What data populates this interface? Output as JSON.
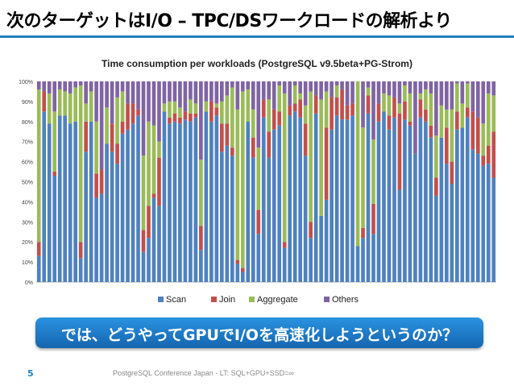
{
  "slide": {
    "title": "次のターゲットはI/O – TPC/DSワークロードの解析より",
    "callout": "では、どうやってGPUでI/Oを高速化しようというのか？",
    "page_number": "5",
    "footer": "PostgreSQL Conference Japan - LT: SQL+GPU+SSD=∞"
  },
  "colors": {
    "accent": "#1f7fbf",
    "Scan": "#4f81bd",
    "Join": "#c0504d",
    "Aggregate": "#9bbb59",
    "Others": "#8064a2"
  },
  "chart_data": {
    "type": "bar",
    "stacked": true,
    "title": "Time consumption per workloads (PostgreSQL v9.5beta+PG-Strom)",
    "ylim": [
      0,
      100
    ],
    "y_ticks": [
      "0%",
      "10%",
      "20%",
      "30%",
      "40%",
      "50%",
      "60%",
      "70%",
      "80%",
      "90%",
      "100%"
    ],
    "legend": [
      "Scan",
      "Join",
      "Aggregate",
      "Others"
    ],
    "legend_position": "bottom",
    "grid": false,
    "series": [
      {
        "name": "Scan",
        "values": [
          13,
          85,
          79,
          53,
          83,
          83,
          79,
          80,
          12,
          65,
          80,
          42,
          44,
          69,
          65,
          59,
          74,
          76,
          79,
          83,
          15,
          22,
          42,
          38,
          85,
          79,
          80,
          79,
          81,
          80,
          82,
          16,
          85,
          80,
          83,
          65,
          68,
          63,
          9,
          5,
          80,
          62,
          24,
          82,
          62,
          76,
          78,
          17,
          83,
          85,
          82,
          63,
          22,
          84,
          33,
          41,
          76,
          83,
          81,
          81,
          83,
          18,
          22,
          84,
          24,
          80,
          85,
          76,
          82,
          46,
          81,
          78,
          64,
          82,
          80,
          72,
          43,
          72,
          59,
          49,
          76,
          77,
          82,
          66,
          64,
          58,
          59,
          52
        ]
      },
      {
        "name": "Join",
        "values": [
          7,
          10,
          0,
          2,
          0,
          0,
          0,
          0,
          8,
          15,
          0,
          12,
          12,
          0,
          14,
          10,
          6,
          13,
          10,
          3,
          11,
          16,
          2,
          24,
          0,
          3,
          4,
          3,
          4,
          4,
          2,
          12,
          0,
          10,
          4,
          14,
          11,
          4,
          2,
          2,
          0,
          10,
          12,
          9,
          13,
          10,
          7,
          3,
          5,
          4,
          9,
          16,
          8,
          9,
          0,
          36,
          16,
          9,
          15,
          7,
          6,
          0,
          5,
          9,
          15,
          9,
          0,
          7,
          10,
          38,
          9,
          2,
          0,
          9,
          6,
          6,
          9,
          0,
          18,
          11,
          9,
          0,
          5,
          19,
          18,
          5,
          9,
          23
        ]
      },
      {
        "name": "Aggregate",
        "values": [
          76,
          0,
          15,
          30,
          13,
          12,
          15,
          17,
          78,
          9,
          15,
          26,
          0,
          18,
          0,
          23,
          15,
          0,
          0,
          0,
          37,
          42,
          34,
          8,
          4,
          8,
          6,
          5,
          0,
          7,
          5,
          33,
          5,
          0,
          2,
          11,
          14,
          30,
          75,
          88,
          16,
          14,
          31,
          0,
          16,
          0,
          13,
          74,
          0,
          9,
          3,
          9,
          65,
          0,
          58,
          18,
          0,
          6,
          0,
          0,
          0,
          82,
          50,
          4,
          32,
          0,
          9,
          10,
          0,
          5,
          8,
          14,
          0,
          3,
          10,
          16,
          21,
          16,
          9,
          26,
          14,
          12,
          12,
          0,
          0,
          16,
          26,
          18
        ]
      },
      {
        "name": "Others",
        "values": [
          4,
          5,
          6,
          15,
          4,
          5,
          6,
          3,
          2,
          11,
          5,
          20,
          44,
          13,
          21,
          8,
          5,
          11,
          11,
          14,
          37,
          20,
          22,
          30,
          11,
          10,
          10,
          13,
          15,
          9,
          11,
          39,
          10,
          10,
          11,
          10,
          7,
          3,
          14,
          5,
          4,
          14,
          33,
          9,
          9,
          14,
          2,
          6,
          12,
          2,
          6,
          12,
          5,
          7,
          9,
          5,
          8,
          2,
          4,
          12,
          11,
          0,
          23,
          3,
          29,
          11,
          6,
          7,
          8,
          11,
          2,
          6,
          36,
          6,
          4,
          6,
          27,
          12,
          14,
          14,
          1,
          11,
          1,
          15,
          18,
          21,
          6,
          7
        ]
      }
    ]
  }
}
